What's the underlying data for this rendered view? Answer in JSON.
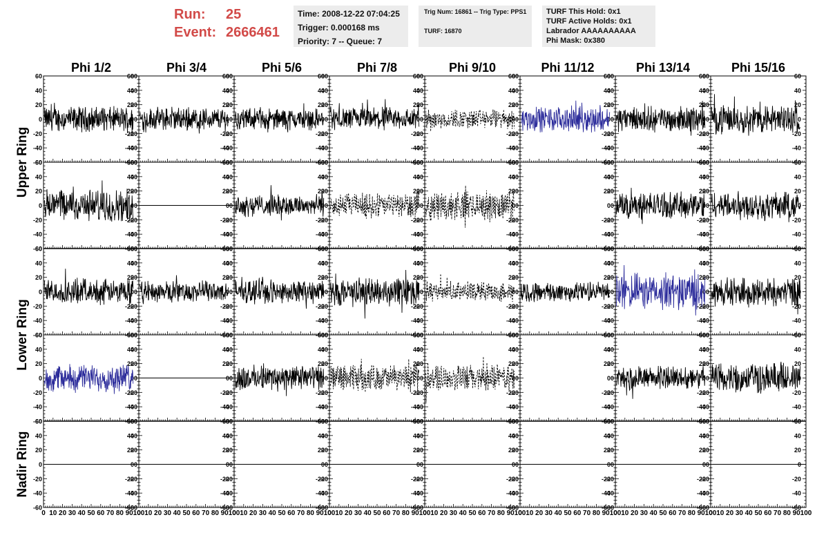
{
  "header": {
    "run_label": "Run:",
    "run_value": "25",
    "event_label": "Event:",
    "event_value": "2666461"
  },
  "info_box_1": {
    "time": "Time: 2008-12-22 07:04:25",
    "trigger": "Trigger: 0.000168 ms",
    "priority": "Priority: 7 -- Queue: 7"
  },
  "info_box_2": {
    "trig": "Trig Num: 16861 -- Trig Type: PPS1",
    "turf": "TURF: 16870"
  },
  "info_box_3": {
    "hold": "TURF This Hold: 0x1",
    "active": "TURF Active Holds: 0x1",
    "labrador": "Labrador AAAAAAAAAA",
    "phimask": "Phi Mask: 0x380"
  },
  "chart_data": {
    "type": "line",
    "columns": [
      "Phi 1/2",
      "Phi 3/4",
      "Phi 5/6",
      "Phi 7/8",
      "Phi 9/10",
      "Phi 11/12",
      "Phi 13/14",
      "Phi 15/16"
    ],
    "ring_labels": [
      "Upper Ring",
      "Lower Ring",
      "Nadir Ring"
    ],
    "rows": 5,
    "xlim": [
      0,
      100
    ],
    "ylim": [
      -60,
      60
    ],
    "x_tick_labels": [
      "0",
      "10",
      "20",
      "30",
      "40",
      "50",
      "60",
      "70",
      "80",
      "90",
      "100"
    ],
    "y_tick_labels": [
      "60",
      "40",
      "20",
      "0",
      "-20",
      "-40",
      "-60"
    ],
    "colors": {
      "normal": "#000000",
      "highlight": "#2a2a9a"
    },
    "panels": [
      [
        "noise:14",
        "noise:13",
        "noise:12",
        "noise:13",
        "dashed:11",
        "blue:14",
        "noise:14",
        "noise:16"
      ],
      [
        "noise:18",
        "flat",
        "noise:12",
        "dashed:14",
        "dashed:16",
        "empty",
        "noise:15",
        "noise:16"
      ],
      [
        "noise:14",
        "noise:12",
        "noise:13",
        "noise:16",
        "dashed:11",
        "noise:11",
        "blue:20",
        "noise:16"
      ],
      [
        "blue:15",
        "flat",
        "noise:14",
        "dashed:15",
        "dashed:15",
        "empty",
        "noise:13",
        "noise:17"
      ],
      [
        "flat",
        "flat",
        "flat",
        "flat",
        "flat",
        "flat",
        "flat",
        "flat"
      ]
    ]
  }
}
